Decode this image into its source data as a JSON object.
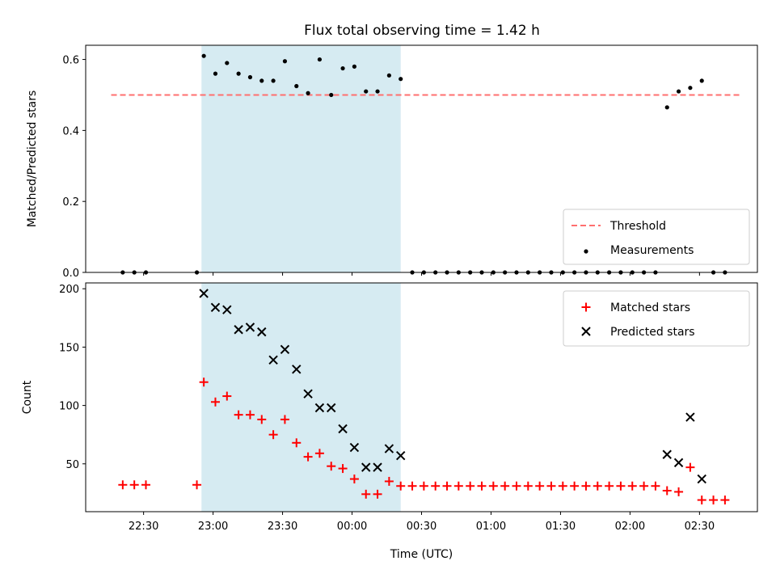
{
  "chart_data": [
    {
      "type": "scatter",
      "title": "Flux total observing time = 1.42 h",
      "xlabel": "",
      "ylabel": "Matched/Predicted stars",
      "ylim": [
        0,
        0.64
      ],
      "yticks": [
        "0.0",
        "0.2",
        "0.4",
        "0.6"
      ],
      "shaded_span": {
        "from": "22:55",
        "to": "00:21",
        "color": "#add8e6"
      },
      "series": [
        {
          "name": "Threshold",
          "style": "dashed-line",
          "color": "#ff6f6f",
          "x": [
            "22:16",
            "02:48"
          ],
          "y": [
            0.5,
            0.5
          ]
        },
        {
          "name": "Measurements",
          "style": "dot",
          "color": "#000000",
          "x": [
            "22:21",
            "22:26",
            "22:31",
            "22:53",
            "22:56",
            "23:01",
            "23:06",
            "23:11",
            "23:16",
            "23:21",
            "23:26",
            "23:31",
            "23:36",
            "23:41",
            "23:46",
            "23:51",
            "23:56",
            "00:01",
            "00:06",
            "00:11",
            "00:16",
            "00:21",
            "00:26",
            "00:31",
            "00:36",
            "00:41",
            "00:46",
            "00:51",
            "00:56",
            "01:01",
            "01:06",
            "01:11",
            "01:16",
            "01:21",
            "01:26",
            "01:31",
            "01:36",
            "01:41",
            "01:46",
            "01:51",
            "01:56",
            "02:01",
            "02:06",
            "02:11",
            "02:16",
            "02:21",
            "02:26",
            "02:31",
            "02:36",
            "02:41"
          ],
          "y": [
            0,
            0,
            0,
            0,
            0.61,
            0.56,
            0.59,
            0.56,
            0.55,
            0.54,
            0.54,
            0.595,
            0.525,
            0.505,
            0.6,
            0.5,
            0.575,
            0.58,
            0.51,
            0.51,
            0.555,
            0.545,
            0,
            0,
            0,
            0,
            0,
            0,
            0,
            0,
            0,
            0,
            0,
            0,
            0,
            0,
            0,
            0,
            0,
            0,
            0,
            0,
            0,
            0,
            0.465,
            0.51,
            0.52,
            0.54,
            0,
            0
          ]
        }
      ],
      "legend": {
        "position": "lower-right",
        "entries": [
          "Threshold",
          "Measurements"
        ]
      }
    },
    {
      "type": "scatter",
      "title": "",
      "xlabel": "Time (UTC)",
      "ylabel": "Count",
      "ylim": [
        9,
        205
      ],
      "yticks": [
        "50",
        "100",
        "150",
        "200"
      ],
      "xticks": [
        "22:30",
        "23:00",
        "23:30",
        "00:00",
        "00:30",
        "01:00",
        "01:30",
        "02:00",
        "02:30"
      ],
      "shaded_span": {
        "from": "22:55",
        "to": "00:21",
        "color": "#add8e6"
      },
      "series": [
        {
          "name": "Matched stars",
          "marker": "+",
          "color": "#ff0000",
          "x": [
            "22:21",
            "22:26",
            "22:31",
            "22:53",
            "22:56",
            "23:01",
            "23:06",
            "23:11",
            "23:16",
            "23:21",
            "23:26",
            "23:31",
            "23:36",
            "23:41",
            "23:46",
            "23:51",
            "23:56",
            "00:01",
            "00:06",
            "00:11",
            "00:16",
            "00:21",
            "00:26",
            "00:31",
            "00:36",
            "00:41",
            "00:46",
            "00:51",
            "00:56",
            "01:01",
            "01:06",
            "01:11",
            "01:16",
            "01:21",
            "01:26",
            "01:31",
            "01:36",
            "01:41",
            "01:46",
            "01:51",
            "01:56",
            "02:01",
            "02:06",
            "02:11",
            "02:16",
            "02:21",
            "02:26",
            "02:31",
            "02:36",
            "02:41"
          ],
          "y": [
            32,
            32,
            32,
            32,
            120,
            103,
            108,
            92,
            92,
            88,
            75,
            88,
            68,
            56,
            59,
            48,
            46,
            37,
            24,
            24,
            35,
            31,
            31,
            31,
            31,
            31,
            31,
            31,
            31,
            31,
            31,
            31,
            31,
            31,
            31,
            31,
            31,
            31,
            31,
            31,
            31,
            31,
            31,
            31,
            27,
            26,
            47,
            19,
            19,
            19
          ]
        },
        {
          "name": "Predicted stars",
          "marker": "x",
          "color": "#000000",
          "x": [
            "22:56",
            "23:01",
            "23:06",
            "23:11",
            "23:16",
            "23:21",
            "23:26",
            "23:31",
            "23:36",
            "23:41",
            "23:46",
            "23:51",
            "23:56",
            "00:01",
            "00:06",
            "00:11",
            "00:16",
            "00:21",
            "02:16",
            "02:21",
            "02:26",
            "02:31"
          ],
          "y": [
            196,
            184,
            182,
            165,
            167,
            163,
            139,
            148,
            131,
            110,
            98,
            98,
            80,
            64,
            47,
            47,
            63,
            57,
            58,
            51,
            90,
            37
          ]
        }
      ],
      "legend": {
        "position": "upper-right",
        "entries": [
          "Matched stars",
          "Predicted stars"
        ]
      }
    }
  ]
}
